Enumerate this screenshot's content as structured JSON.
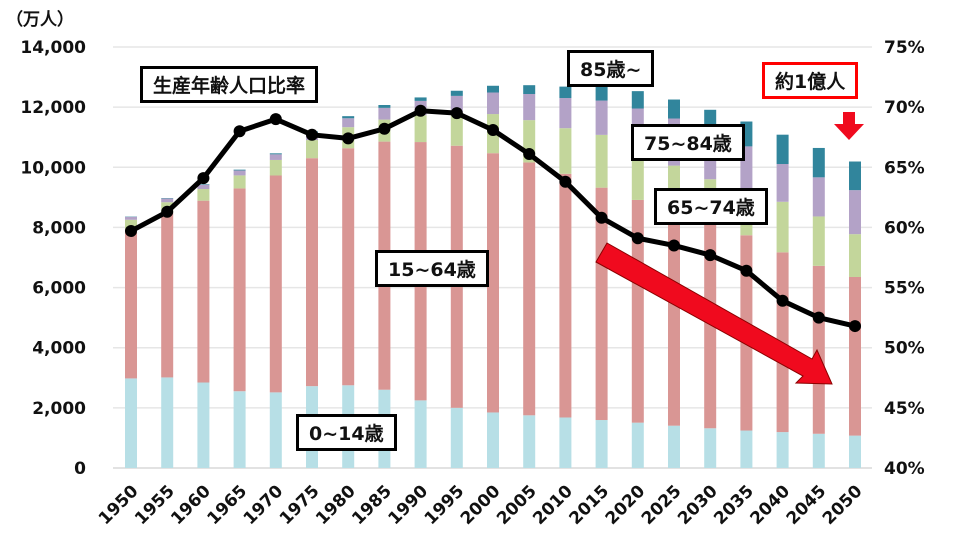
{
  "chart_data": {
    "type": "bar",
    "stacked": true,
    "unit_label": "（万人）",
    "categories": [
      "1950",
      "1955",
      "1960",
      "1965",
      "1970",
      "1975",
      "1980",
      "1985",
      "1990",
      "1995",
      "2000",
      "2005",
      "2010",
      "2015",
      "2020",
      "2025",
      "2030",
      "2035",
      "2040",
      "2045",
      "2050"
    ],
    "series": [
      {
        "name": "0~14歳",
        "color": "#b7dfe6",
        "values": [
          2979,
          3012,
          2843,
          2553,
          2515,
          2722,
          2751,
          2603,
          2249,
          2001,
          1847,
          1752,
          1680,
          1595,
          1508,
          1407,
          1321,
          1246,
          1194,
          1138,
          1077
        ]
      },
      {
        "name": "15~64歳",
        "color": "#d99694",
        "values": [
          4966,
          5473,
          6047,
          6744,
          7212,
          7581,
          7883,
          8251,
          8590,
          8716,
          8622,
          8409,
          8103,
          7728,
          7406,
          7170,
          6875,
          6494,
          5978,
          5584,
          5275
        ]
      },
      {
        "name": "65~74歳",
        "color": "#c3d69b",
        "values": [
          309,
          354,
          387,
          433,
          517,
          602,
          700,
          732,
          892,
          1109,
          1301,
          1407,
          1517,
          1755,
          1747,
          1479,
          1407,
          1522,
          1681,
          1643,
          1424
        ]
      },
      {
        "name": "75~84歳",
        "color": "#b3a2c7",
        "values": [
          95,
          122,
          142,
          165,
          187,
          248,
          296,
          390,
          477,
          548,
          717,
          869,
          1003,
          1141,
          1294,
          1566,
          1555,
          1433,
          1256,
          1301,
          1464
        ]
      },
      {
        "name": "85歳~",
        "color": "#31859c",
        "values": [
          11,
          14,
          19,
          26,
          33,
          40,
          70,
          95,
          115,
          171,
          224,
          293,
          380,
          488,
          577,
          631,
          754,
          827,
          975,
          977,
          952
        ]
      }
    ],
    "line": {
      "name": "生産年齢人口比率",
      "axis": "right",
      "values": [
        59.7,
        61.3,
        64.1,
        68.0,
        69.0,
        67.7,
        67.4,
        68.2,
        69.7,
        69.5,
        68.1,
        66.1,
        63.8,
        60.8,
        59.1,
        58.5,
        57.7,
        56.4,
        53.9,
        52.5,
        51.8
      ]
    },
    "ylim": [
      0,
      14000
    ],
    "y_ticks": [
      "0",
      "2,000",
      "4,000",
      "6,000",
      "8,000",
      "10,000",
      "12,000",
      "14,000"
    ],
    "y2lim": [
      40,
      75
    ],
    "y2_ticks": [
      "40%",
      "45%",
      "50%",
      "55%",
      "60%",
      "65%",
      "70%",
      "75%"
    ],
    "grid": true,
    "annotations": {
      "ratio": "生産年齢人口比率",
      "a0": "0~14歳",
      "a1": "15~64歳",
      "a2": "65~74歳",
      "a3": "75~84歳",
      "a4": "85歳~",
      "callout": "約1億人"
    }
  }
}
